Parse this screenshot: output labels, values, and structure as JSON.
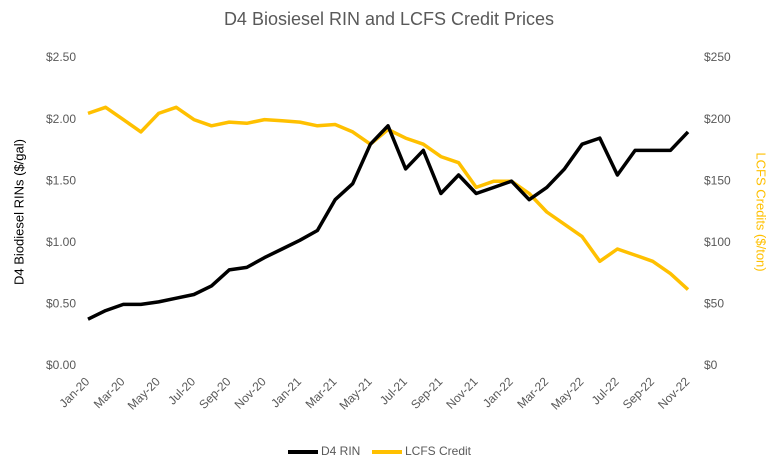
{
  "chart_data": {
    "type": "line",
    "title": "D4 Biosiesel RIN and LCFS Credit Prices",
    "y_label": "D4 Biodiesel RINs ($/gal)",
    "y2_label": "LCFS Credits ($/ton)",
    "categories": [
      "Jan-20",
      null,
      "Mar-20",
      null,
      "May-20",
      null,
      "Jul-20",
      null,
      "Sep-20",
      null,
      "Nov-20",
      null,
      "Jan-21",
      null,
      "Mar-21",
      null,
      "May-21",
      null,
      "Jul-21",
      null,
      "Sep-21",
      null,
      "Nov-21",
      null,
      "Jan-22",
      null,
      "Mar-22",
      null,
      "May-22",
      null,
      "Jul-22",
      null,
      "Sep-22",
      null,
      "Nov-22"
    ],
    "series": [
      {
        "name": "D4 RIN",
        "color": "#000000",
        "axis": "y",
        "values": [
          0.38,
          0.45,
          0.5,
          0.5,
          0.52,
          0.55,
          0.58,
          0.65,
          0.78,
          0.8,
          0.88,
          0.95,
          1.02,
          1.1,
          1.35,
          1.48,
          1.8,
          1.95,
          1.6,
          1.75,
          1.4,
          1.55,
          1.4,
          1.45,
          1.5,
          1.35,
          1.45,
          1.6,
          1.8,
          1.85,
          1.55,
          1.75,
          1.75,
          1.75,
          1.9
        ]
      },
      {
        "name": "LCFS Credit",
        "color": "#ffc000",
        "axis": "y2",
        "values": [
          205,
          210,
          200,
          190,
          205,
          210,
          200,
          195,
          198,
          197,
          200,
          199,
          198,
          195,
          196,
          190,
          180,
          192,
          185,
          180,
          170,
          165,
          145,
          150,
          150,
          140,
          125,
          115,
          105,
          85,
          95,
          90,
          85,
          75,
          62
        ]
      }
    ],
    "ylim": [
      0,
      2.5
    ],
    "yticks": [
      {
        "value": 0,
        "label": "$0.00"
      },
      {
        "value": 0.5,
        "label": "$0.50"
      },
      {
        "value": 1,
        "label": "$1.00"
      },
      {
        "value": 1.5,
        "label": "$1.50"
      },
      {
        "value": 2,
        "label": "$2.00"
      },
      {
        "value": 2.5,
        "label": "$2.50"
      }
    ],
    "y2lim": [
      0,
      250
    ],
    "y2ticks": [
      {
        "value": 0,
        "label": "$0"
      },
      {
        "value": 50,
        "label": "$50"
      },
      {
        "value": 100,
        "label": "$100"
      },
      {
        "value": 150,
        "label": "$150"
      },
      {
        "value": 200,
        "label": "$200"
      },
      {
        "value": 250,
        "label": "$250"
      }
    ],
    "grid": false,
    "legend": "bottom"
  }
}
